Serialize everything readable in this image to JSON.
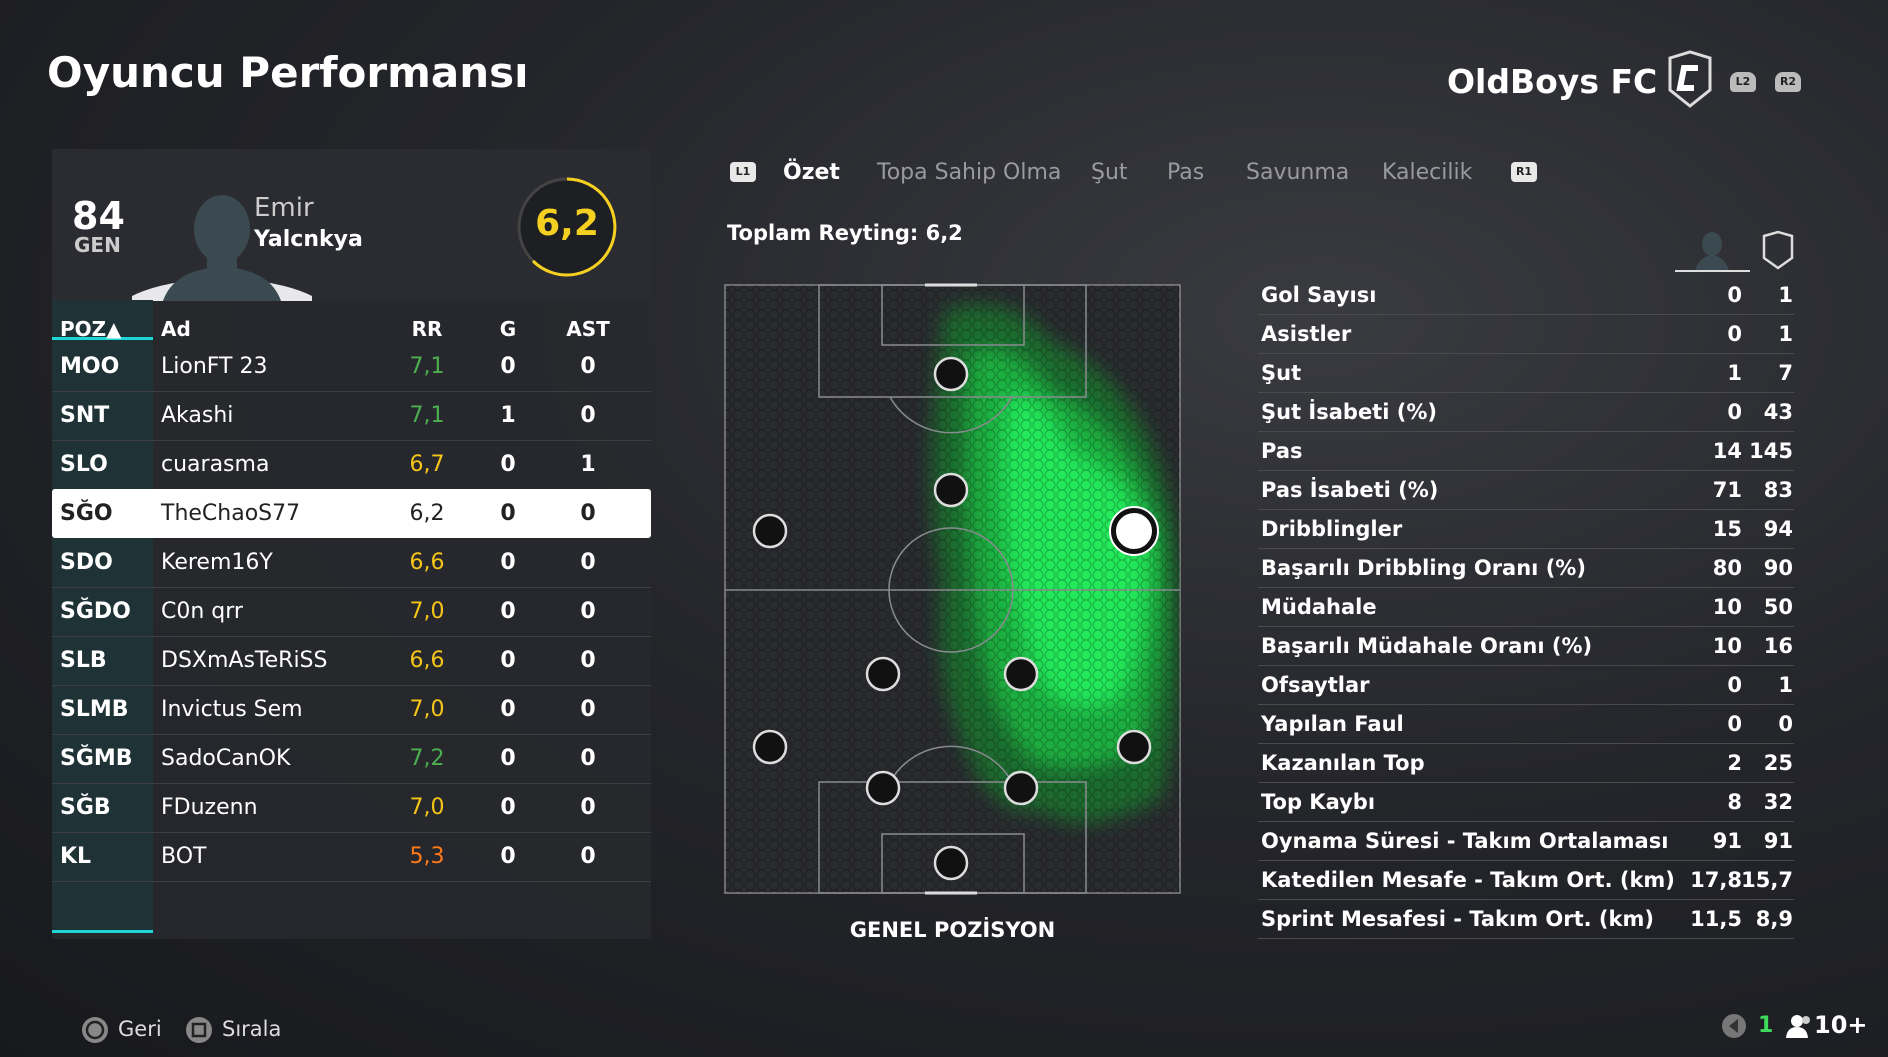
{
  "header": {
    "title": "Oyuncu Performansı",
    "team": "OldBoys FC",
    "left_button": "L2",
    "right_button": "R2"
  },
  "player": {
    "overall": "84",
    "overall_label": "GEN",
    "first_name": "Emir",
    "last_name": "Yalcnkya",
    "rating": "6,2"
  },
  "table": {
    "columns": [
      "POZ▲",
      "Ad",
      "RR",
      "G",
      "AST"
    ],
    "rows": [
      [
        "MOO",
        "LionFT 23",
        "7,1",
        0,
        0
      ],
      [
        "SNT",
        "Akashi",
        "7,1",
        1,
        0
      ],
      [
        "SLO",
        "cuarasma",
        "6,7",
        0,
        1
      ],
      [
        "SĞO",
        "TheChaoS77",
        "6,2",
        0,
        0
      ],
      [
        "SDO",
        "Kerem16Y",
        "6,6",
        0,
        0
      ],
      [
        "SĞDO",
        "C0n qrr",
        "7,0",
        0,
        0
      ],
      [
        "SLB",
        "DSXmAsTeRiSS",
        "6,6",
        0,
        0
      ],
      [
        "SLMB",
        "Invictus Sem",
        "7,0",
        0,
        0
      ],
      [
        "SĞMB",
        "SadoCanOK",
        "7,2",
        0,
        0
      ],
      [
        "SĞB",
        "FDuzenn",
        "7,0",
        0,
        0
      ],
      [
        "KL",
        "BOT",
        "5,3",
        0,
        0
      ]
    ],
    "rr_colors": [
      "#4caf50",
      "#4caf50",
      "#f5c518",
      "#222222",
      "#f5c518",
      "#f5c518",
      "#f5c518",
      "#f5c518",
      "#4caf50",
      "#f5c518",
      "#ff7a1a"
    ],
    "selected_row": 3
  },
  "tabs": {
    "left_button": "L1",
    "right_button": "R1",
    "items": [
      "Özet",
      "Topa Sahip Olma",
      "Şut",
      "Pas",
      "Savunma",
      "Kalecilik"
    ],
    "active": 0
  },
  "total_rating": "Toplam Reyting: 6,2",
  "pitch_label": "GENEL POZİSYON",
  "stats": [
    [
      "Gol Sayısı",
      0,
      1
    ],
    [
      "Asistler",
      0,
      1
    ],
    [
      "Şut",
      1,
      7
    ],
    [
      "Şut İsabeti (%)",
      0,
      43
    ],
    [
      "Pas",
      14,
      145
    ],
    [
      "Pas İsabeti (%)",
      71,
      83
    ],
    [
      "Dribblingler",
      15,
      94
    ],
    [
      "Başarılı Dribbling Oranı (%)",
      80,
      90
    ],
    [
      "Müdahale",
      10,
      50
    ],
    [
      "Başarılı Müdahale Oranı (%)",
      10,
      16
    ],
    [
      "Ofsaytlar",
      0,
      1
    ],
    [
      "Yapılan Faul",
      0,
      0
    ],
    [
      "Kazanılan Top",
      2,
      25
    ],
    [
      "Top Kaybı",
      8,
      32
    ],
    [
      "Oynama Süresi - Takım Ortalaması",
      91,
      91
    ],
    [
      "Katedilen Mesafe - Takım Ort. (km)",
      "17,8",
      "15,7"
    ],
    [
      "Sprint Mesafesi - Takım Ort. (km)",
      "11,5",
      "8,9"
    ]
  ],
  "footer": {
    "back": "Geri",
    "sort": "Sırala",
    "count": "1",
    "players": "10+"
  }
}
